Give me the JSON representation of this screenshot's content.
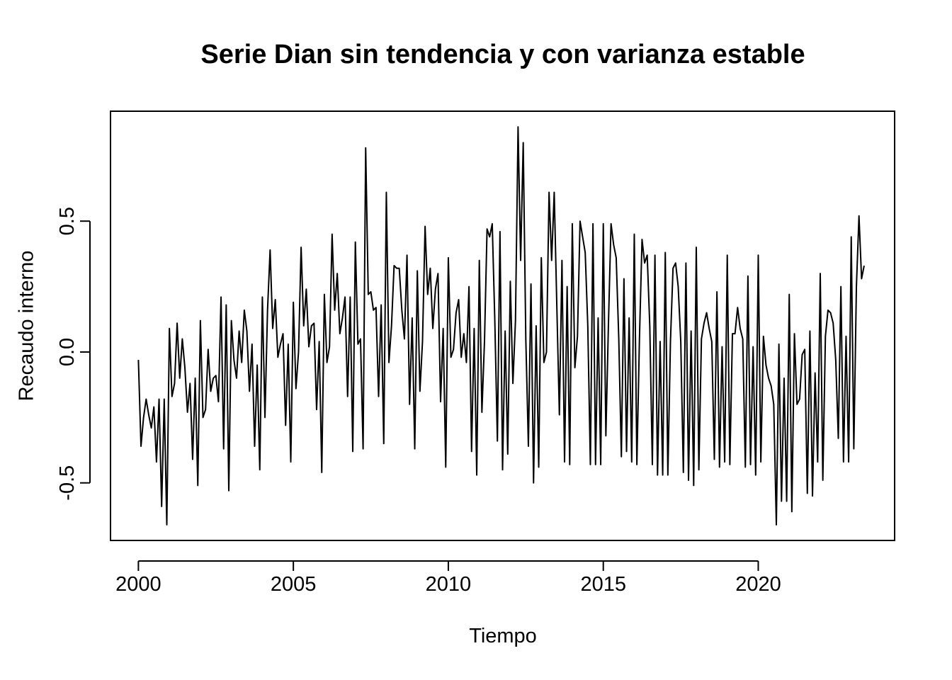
{
  "chart_data": {
    "type": "line",
    "title": "Serie Dian sin tendencia y con varianza estable",
    "xlabel": "Tiempo",
    "ylabel": "Recaudo interno",
    "xlim": [
      1999.1,
      2024.4
    ],
    "ylim": [
      -0.72,
      0.92
    ],
    "xticks": [
      2000,
      2005,
      2010,
      2015,
      2020
    ],
    "xtick_labels": [
      "2000",
      "2005",
      "2010",
      "2015",
      "2020"
    ],
    "yticks": [
      -0.5,
      0.0,
      0.5
    ],
    "ytick_labels": [
      "-0.5",
      "0.0",
      "0.5"
    ],
    "grid": false,
    "legend": "none",
    "series": [
      {
        "color": "#000000",
        "x_start": 2000.0,
        "frequency": 12,
        "values": [
          -0.03,
          -0.36,
          -0.25,
          -0.18,
          -0.24,
          -0.29,
          -0.21,
          -0.42,
          -0.18,
          -0.59,
          -0.18,
          -0.66,
          0.09,
          -0.17,
          -0.12,
          0.11,
          -0.1,
          0.05,
          -0.06,
          -0.23,
          -0.12,
          -0.41,
          -0.1,
          -0.51,
          0.12,
          -0.25,
          -0.22,
          0.01,
          -0.15,
          -0.1,
          -0.09,
          -0.19,
          0.21,
          -0.37,
          0.18,
          -0.53,
          0.12,
          -0.03,
          -0.1,
          0.08,
          -0.04,
          0.16,
          0.08,
          -0.15,
          0.03,
          -0.36,
          -0.05,
          -0.45,
          0.21,
          -0.25,
          0.16,
          0.39,
          0.09,
          0.2,
          -0.02,
          0.03,
          0.07,
          -0.28,
          0.03,
          -0.42,
          0.19,
          -0.14,
          0.0,
          0.4,
          0.1,
          0.24,
          0.02,
          0.1,
          0.11,
          -0.22,
          0.04,
          -0.46,
          0.22,
          -0.04,
          0.02,
          0.45,
          0.16,
          0.3,
          0.07,
          0.13,
          0.21,
          -0.17,
          0.21,
          -0.38,
          0.42,
          0.03,
          0.05,
          -0.37,
          0.78,
          0.22,
          0.23,
          0.16,
          0.17,
          -0.17,
          0.18,
          -0.35,
          0.61,
          -0.04,
          0.1,
          0.33,
          0.32,
          0.32,
          0.16,
          0.05,
          0.37,
          -0.2,
          0.13,
          -0.37,
          0.31,
          -0.15,
          0.04,
          0.48,
          0.22,
          0.32,
          0.09,
          0.24,
          0.3,
          -0.19,
          0.09,
          -0.44,
          0.36,
          -0.02,
          0.01,
          0.15,
          0.2,
          -0.02,
          0.07,
          -0.04,
          0.25,
          -0.38,
          0.09,
          -0.47,
          0.35,
          -0.23,
          0.04,
          0.47,
          0.44,
          0.49,
          0.12,
          -0.34,
          0.46,
          -0.45,
          0.08,
          -0.39,
          0.27,
          -0.12,
          0.12,
          0.86,
          0.35,
          0.8,
          0.05,
          -0.36,
          0.26,
          -0.5,
          0.1,
          -0.44,
          0.36,
          -0.04,
          0.0,
          0.61,
          0.35,
          0.61,
          0.18,
          -0.24,
          0.35,
          -0.42,
          0.25,
          -0.43,
          0.49,
          -0.06,
          0.06,
          0.5,
          0.44,
          0.38,
          0.1,
          -0.43,
          0.49,
          -0.43,
          0.13,
          -0.43,
          0.49,
          -0.32,
          0.11,
          0.49,
          0.41,
          0.36,
          0.05,
          -0.4,
          0.28,
          -0.38,
          0.13,
          -0.42,
          0.45,
          -0.43,
          0.05,
          0.43,
          0.34,
          0.37,
          0.1,
          -0.43,
          0.37,
          -0.47,
          0.04,
          -0.47,
          0.38,
          -0.47,
          0.04,
          0.32,
          0.34,
          0.25,
          0.04,
          -0.46,
          0.34,
          -0.49,
          0.08,
          -0.51,
          0.4,
          -0.45,
          0.05,
          0.11,
          0.15,
          0.09,
          0.04,
          -0.41,
          0.23,
          -0.44,
          0.02,
          -0.42,
          0.37,
          -0.43,
          0.07,
          0.07,
          0.17,
          0.09,
          0.05,
          -0.44,
          0.29,
          -0.43,
          0.02,
          -0.47,
          0.37,
          -0.42,
          0.06,
          -0.05,
          -0.1,
          -0.13,
          -0.2,
          -0.66,
          0.03,
          -0.57,
          -0.1,
          -0.57,
          0.22,
          -0.61,
          0.07,
          -0.2,
          -0.18,
          -0.01,
          0.01,
          -0.54,
          0.08,
          -0.55,
          -0.08,
          -0.42,
          0.3,
          -0.49,
          0.06,
          0.16,
          0.15,
          0.11,
          -0.03,
          -0.33,
          0.25,
          -0.42,
          0.06,
          -0.42,
          0.44,
          -0.37,
          0.25,
          0.52,
          0.28,
          0.33
        ]
      }
    ]
  }
}
